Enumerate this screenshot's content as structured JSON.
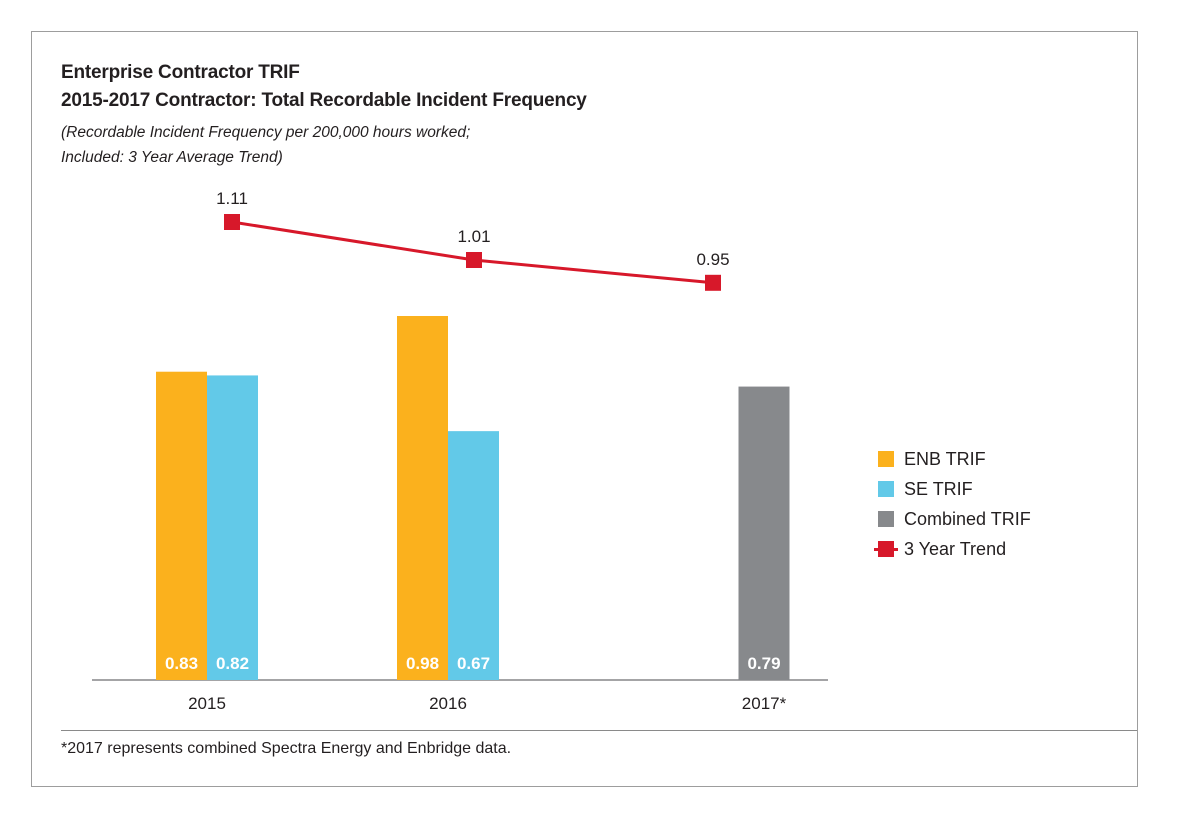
{
  "title": "Enterprise Contractor TRIF",
  "subtitle": "2015-2017 Contractor: Total Recordable Incident Frequency",
  "note_lines": [
    "(Recordable Incident Frequency per 200,000 hours worked;",
    "Included: 3 Year Average Trend)"
  ],
  "footnote": "*2017 represents combined Spectra Energy and Enbridge data.",
  "colors": {
    "enb": "#fbb11d",
    "se": "#62c9e8",
    "combined": "#87898c",
    "trend": "#d7182a",
    "label_text": "#ffffff",
    "axis": "#6d6e71"
  },
  "legend": [
    {
      "label": "ENB TRIF",
      "color": "#fbb11d",
      "kind": "swatch"
    },
    {
      "label": "SE TRIF",
      "color": "#62c9e8",
      "kind": "swatch"
    },
    {
      "label": "Combined TRIF",
      "color": "#87898c",
      "kind": "swatch"
    },
    {
      "label": "3 Year Trend",
      "color": "#d7182a",
      "kind": "line-marker"
    }
  ],
  "chart_data": {
    "type": "bar",
    "categories": [
      "2015",
      "2016",
      "2017*"
    ],
    "series": [
      {
        "name": "ENB TRIF",
        "color": "#fbb11d",
        "values": [
          0.83,
          0.98,
          null
        ],
        "labels": [
          "0.83",
          "0.98",
          ""
        ]
      },
      {
        "name": "SE TRIF",
        "color": "#62c9e8",
        "values": [
          0.82,
          0.67,
          null
        ],
        "labels": [
          "0.82",
          "0.67",
          ""
        ]
      },
      {
        "name": "Combined TRIF",
        "color": "#87898c",
        "values": [
          null,
          null,
          0.79
        ],
        "labels": [
          "",
          "",
          "0.79"
        ]
      }
    ],
    "line_series": {
      "name": "3 Year Trend",
      "type": "line",
      "color": "#d7182a",
      "values": [
        1.11,
        1.01,
        0.95
      ],
      "labels": [
        "1.11",
        "1.01",
        "0.95"
      ]
    },
    "ylim": [
      0,
      1.4
    ],
    "grid": false,
    "legend_position": "right"
  }
}
